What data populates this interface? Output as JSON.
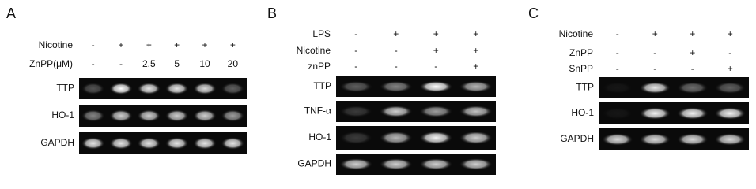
{
  "panels": [
    {
      "letter": "A",
      "conditions": [
        {
          "label": "Nicotine",
          "lanes": [
            "-",
            "+",
            "+",
            "+",
            "+",
            "+"
          ]
        },
        {
          "label": "ZnPP(μM)",
          "lanes": [
            "-",
            "-",
            "2.5",
            "5",
            "10",
            "20"
          ]
        }
      ],
      "blots": [
        "TTP",
        "HO-1",
        "GAPDH"
      ]
    },
    {
      "letter": "B",
      "conditions": [
        {
          "label": "LPS",
          "lanes": [
            "-",
            "+",
            "+",
            "+"
          ]
        },
        {
          "label": "Nicotine",
          "lanes": [
            "-",
            "-",
            "+",
            "+"
          ]
        },
        {
          "label": "znPP",
          "lanes": [
            "-",
            "-",
            "-",
            "+"
          ]
        }
      ],
      "blots": [
        "TTP",
        "TNF-α",
        "HO-1",
        "GAPDH"
      ]
    },
    {
      "letter": "C",
      "conditions": [
        {
          "label": "Nicotine",
          "lanes": [
            "-",
            "+",
            "+",
            "+"
          ]
        },
        {
          "label": "ZnPP",
          "lanes": [
            "-",
            "-",
            "+",
            "-"
          ]
        },
        {
          "label": "SnPP",
          "lanes": [
            "-",
            "-",
            "-",
            "+"
          ]
        }
      ],
      "blots": [
        "TTP",
        "HO-1",
        "GAPDH"
      ]
    }
  ]
}
